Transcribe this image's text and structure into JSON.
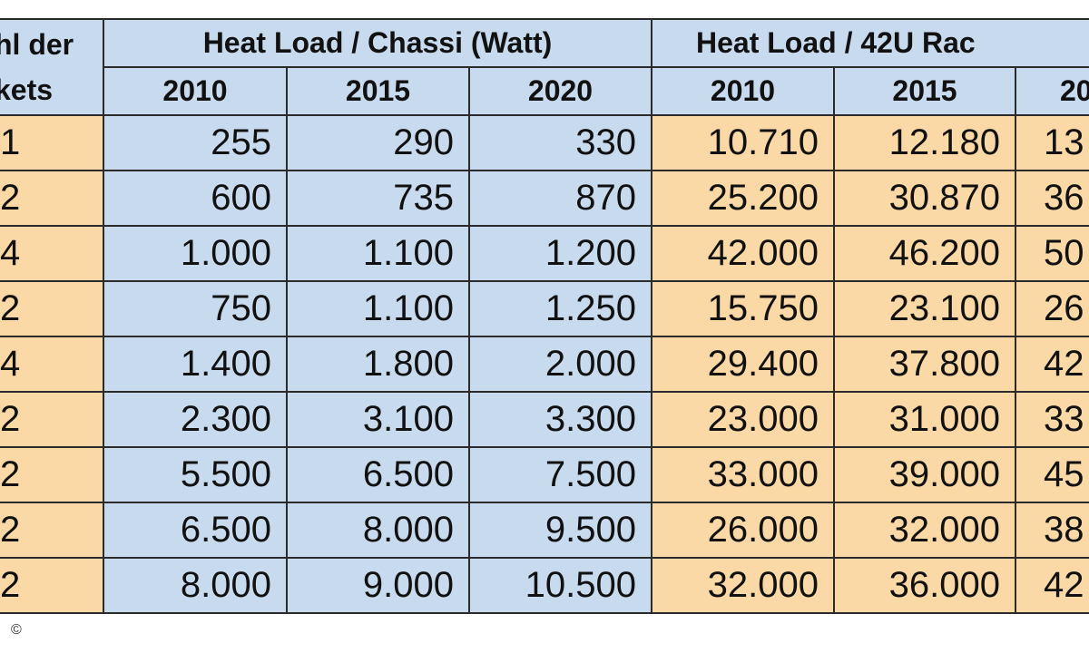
{
  "header": {
    "left_lines": [
      "hl der",
      "kets"
    ],
    "groups": [
      "Heat Load / Chassi (Watt)",
      "Heat Load / 42U Rac"
    ],
    "years": [
      "2010",
      "2015",
      "2020",
      "2010",
      "2015",
      "20"
    ]
  },
  "rows": [
    [
      "1",
      "255",
      "290",
      "330",
      "10.710",
      "12.180",
      "13"
    ],
    [
      "2",
      "600",
      "735",
      "870",
      "25.200",
      "30.870",
      "36"
    ],
    [
      "4",
      "1.000",
      "1.100",
      "1.200",
      "42.000",
      "46.200",
      "50"
    ],
    [
      "2",
      "750",
      "1.100",
      "1.250",
      "15.750",
      "23.100",
      "26"
    ],
    [
      "4",
      "1.400",
      "1.800",
      "2.000",
      "29.400",
      "37.800",
      "42"
    ],
    [
      "2",
      "2.300",
      "3.100",
      "3.300",
      "23.000",
      "31.000",
      "33"
    ],
    [
      "2",
      "5.500",
      "6.500",
      "7.500",
      "33.000",
      "39.000",
      "45"
    ],
    [
      "2",
      "6.500",
      "8.000",
      "9.500",
      "26.000",
      "32.000",
      "38"
    ],
    [
      "2",
      "8.000",
      "9.000",
      "10.500",
      "32.000",
      "36.000",
      "42"
    ]
  ],
  "copyright": "©"
}
